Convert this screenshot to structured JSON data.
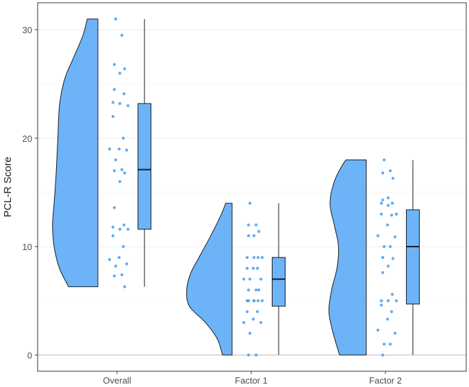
{
  "chart_data": {
    "type": "raincloud",
    "title": "",
    "xlabel": "",
    "ylabel": "PCL-R Score",
    "ylim": [
      -1.5,
      32.5
    ],
    "y_ticks": [
      0,
      10,
      20,
      30
    ],
    "y_tick_labels": [
      "0",
      "10",
      "20",
      "30"
    ],
    "grid": "horizontal major and minor, light",
    "legend": "none",
    "fill_color": "#6db3f7",
    "point_color": "#4aa0f0",
    "categories": [
      "Overall",
      "Factor 1",
      "Factor 2"
    ],
    "groups": [
      {
        "category": "Overall",
        "box": {
          "min": 6.3,
          "q1": 11.6,
          "median": 17.1,
          "q3": 23.2,
          "max": 31.0
        },
        "density": [
          [
            6.3,
            0.55
          ],
          [
            8,
            0.72
          ],
          [
            10,
            0.82
          ],
          [
            12,
            0.85
          ],
          [
            14,
            0.82
          ],
          [
            17,
            0.78
          ],
          [
            20,
            0.75
          ],
          [
            23,
            0.72
          ],
          [
            25.5,
            0.62
          ],
          [
            27.5,
            0.45
          ],
          [
            29.5,
            0.28
          ],
          [
            31,
            0.2
          ]
        ],
        "points": [
          31.0,
          29.5,
          26.8,
          26.4,
          26.0,
          24.5,
          24.1,
          23.3,
          23.2,
          23.0,
          22.0,
          20.0,
          19.0,
          19.0,
          18.9,
          18.0,
          17.1,
          17.0,
          16.8,
          16.0,
          13.6,
          12.0,
          11.8,
          11.6,
          11.6,
          11.0,
          10.0,
          9.0,
          8.8,
          8.4,
          8.2,
          7.4,
          7.3,
          6.3
        ]
      },
      {
        "category": "Factor 1",
        "box": {
          "min": 0,
          "q1": 4.5,
          "median": 7.0,
          "q3": 9.0,
          "max": 14.0
        },
        "density": [
          [
            0,
            0.18
          ],
          [
            1.5,
            0.28
          ],
          [
            3,
            0.5
          ],
          [
            4.5,
            0.8
          ],
          [
            6,
            0.85
          ],
          [
            7.5,
            0.78
          ],
          [
            9,
            0.62
          ],
          [
            11,
            0.4
          ],
          [
            13,
            0.2
          ],
          [
            14,
            0.12
          ]
        ],
        "points": [
          14.0,
          12.0,
          12.0,
          11.4,
          11.0,
          11.0,
          9.0,
          9.0,
          9.0,
          9.0,
          8.0,
          8.0,
          8.0,
          7.0,
          7.0,
          7.0,
          6.0,
          6.0,
          6.0,
          5.0,
          5.0,
          5.0,
          5.0,
          5.0,
          5.0,
          4.0,
          4.0,
          3.3,
          3.0,
          3.0,
          2.0,
          0.0,
          0.0
        ]
      },
      {
        "category": "Factor 2",
        "box": {
          "min": 0,
          "q1": 4.7,
          "median": 10.0,
          "q3": 13.4,
          "max": 18.0
        },
        "density": [
          [
            0,
            0.5
          ],
          [
            2,
            0.62
          ],
          [
            4,
            0.7
          ],
          [
            6,
            0.65
          ],
          [
            8,
            0.55
          ],
          [
            10,
            0.52
          ],
          [
            12,
            0.6
          ],
          [
            14,
            0.68
          ],
          [
            16,
            0.6
          ],
          [
            17.5,
            0.45
          ],
          [
            18,
            0.38
          ]
        ],
        "points": [
          18.0,
          17.0,
          16.8,
          16.3,
          14.5,
          14.3,
          14.0,
          14.0,
          13.8,
          13.0,
          13.0,
          12.9,
          12.0,
          11.0,
          10.9,
          10.0,
          10.0,
          9.0,
          8.9,
          8.2,
          7.6,
          5.6,
          5.0,
          5.0,
          5.0,
          4.6,
          4.0,
          3.3,
          2.3,
          2.0,
          1.0,
          1.0,
          0.0
        ]
      }
    ]
  }
}
